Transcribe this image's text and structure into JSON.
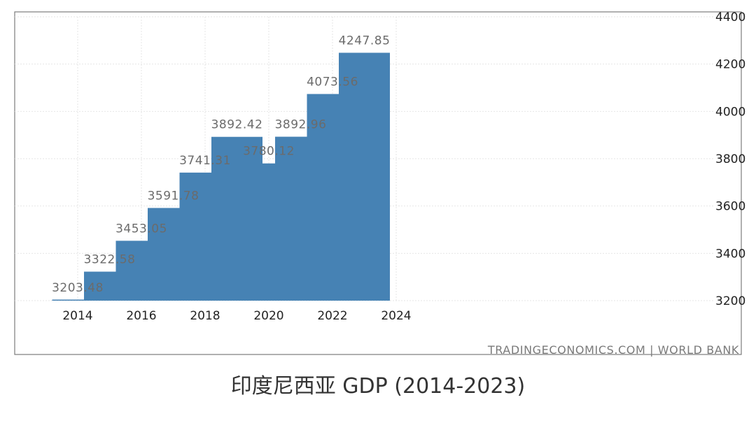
{
  "caption": "印度尼西亚 GDP (2014-2023)",
  "source": "TRADINGECONOMICS.COM | WORLD BANK",
  "chart_data": {
    "type": "bar",
    "title": "印度尼西亚 GDP (2014-2023)",
    "categories": [
      "2014",
      "2015",
      "2016",
      "2017",
      "2018",
      "2019",
      "2020",
      "2021",
      "2022",
      "2023"
    ],
    "values": [
      3203.48,
      3322.58,
      3453.05,
      3591.78,
      3741.31,
      3892.42,
      3780.12,
      3892.96,
      4073.56,
      4247.85
    ],
    "data_labels": [
      "3203.48",
      "3322.58",
      "3453.05",
      "3591.78",
      "3741.31",
      "3892.42",
      "3780.12",
      "3892.96",
      "4073.56",
      "4247.85"
    ],
    "x_ticks": [
      "2014",
      "2016",
      "2018",
      "2020",
      "2022",
      "2024"
    ],
    "y_ticks": [
      "3200",
      "3400",
      "3600",
      "3800",
      "4000",
      "4200",
      "4400"
    ],
    "ylim": [
      3200,
      4400
    ],
    "y_axis_side": "right",
    "grid": true,
    "bar_color": "#4682b4"
  }
}
